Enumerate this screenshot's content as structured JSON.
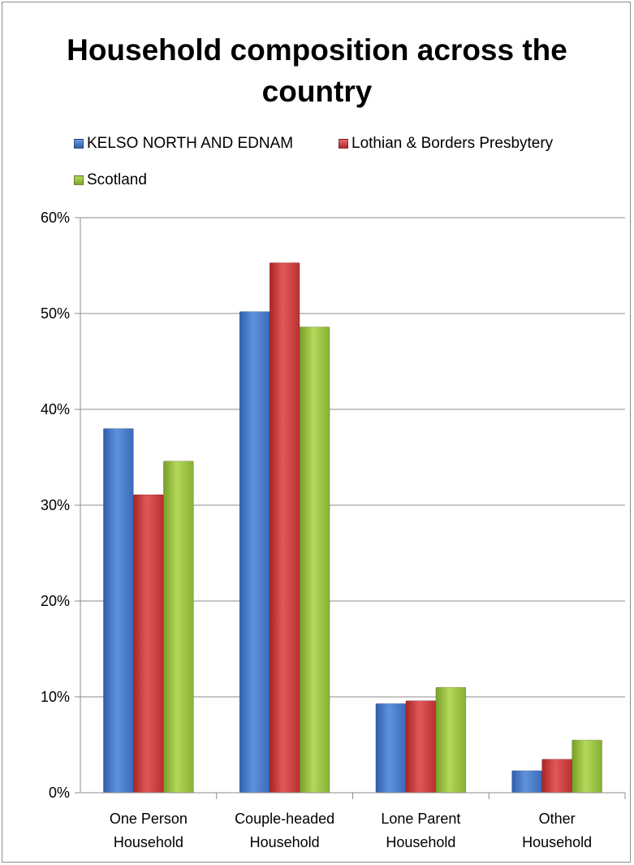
{
  "chart_data": {
    "type": "bar",
    "title": "Household composition across the country",
    "categories": [
      [
        "One Person",
        "Household"
      ],
      [
        "Couple-headed",
        "Household"
      ],
      [
        "Lone Parent",
        "Household"
      ],
      [
        "Other",
        "Household"
      ]
    ],
    "series": [
      {
        "name": "KELSO NORTH AND EDNAM",
        "color": "#4a7fd0",
        "values": [
          38.0,
          50.2,
          9.3,
          2.3
        ]
      },
      {
        "name": "Lothian & Borders Presbytery",
        "color": "#d84242",
        "values": [
          31.1,
          55.3,
          9.6,
          3.5
        ]
      },
      {
        "name": "Scotland",
        "color": "#9bc43c",
        "values": [
          34.6,
          48.6,
          11.0,
          5.5
        ]
      }
    ],
    "ylim": [
      0,
      60
    ],
    "yticks": [
      "0%",
      "10%",
      "20%",
      "30%",
      "40%",
      "50%",
      "60%"
    ],
    "xlabel": "",
    "ylabel": "",
    "grid": true,
    "legend_position": "top"
  }
}
